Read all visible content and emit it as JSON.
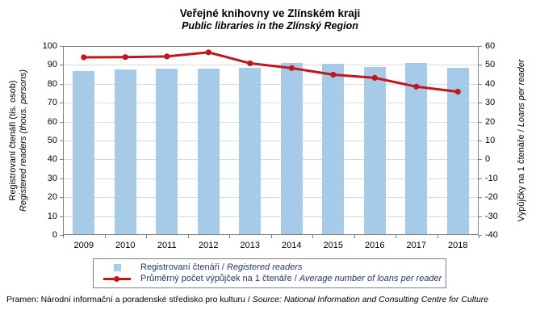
{
  "title": "Veřejné knihovny ve Zlínském kraji",
  "subtitle": "Public libraries in the Zlínský Region",
  "footer": {
    "cs": "Pramen: Národní informační a poradenské středisko pro kulturu /",
    "en": "Source: National Information and Consulting Centre for Culture"
  },
  "legend": [
    {
      "marker": "bar-square",
      "cs": "Registrovaní čtenáři /",
      "en": "Registered readers"
    },
    {
      "marker": "line-dot",
      "cs": "Průměrný počet výpůjček na 1 čtenáře /",
      "en": "Average number of loans per reader"
    }
  ],
  "colors": {
    "bar": "#A5CBE9",
    "line": "#C0161C",
    "gridline": "#D9D9D9",
    "axis": "#7F7F7F",
    "legend_text": "#1F3864"
  },
  "chart_data": {
    "type": "bar+line",
    "categories": [
      "2009",
      "2010",
      "2011",
      "2012",
      "2013",
      "2014",
      "2015",
      "2016",
      "2017",
      "2018"
    ],
    "series": [
      {
        "name": "Registrovaní čtenáři / Registered readers",
        "type": "bar",
        "axis": "left",
        "color": "#A5CBE9",
        "values": [
          86.9,
          87.5,
          88.2,
          87.9,
          88.5,
          91.0,
          90.6,
          89.0,
          91.0,
          88.3
        ]
      },
      {
        "name": "Průměrný počet výpůjček na 1 čtenáře / Average number of loans per reader",
        "type": "line",
        "axis": "right",
        "color": "#C0161C",
        "values": [
          56.4,
          56.5,
          56.7,
          58.0,
          54.5,
          53.0,
          50.9,
          49.9,
          47.1,
          45.5
        ]
      }
    ],
    "left_axis": {
      "title_cs": "Registrovaní čtenáři (tis. osob)",
      "title_en": "Registered readers (thous. persons)",
      "min": 0,
      "max": 100,
      "step": 10
    },
    "right_axis": {
      "title_cs": "Výpůjčky na 1 čtenáře /",
      "title_en": "Loans per reader",
      "min": 0,
      "max": 60,
      "step": 10
    },
    "grid": true,
    "legend_position": "bottom"
  }
}
